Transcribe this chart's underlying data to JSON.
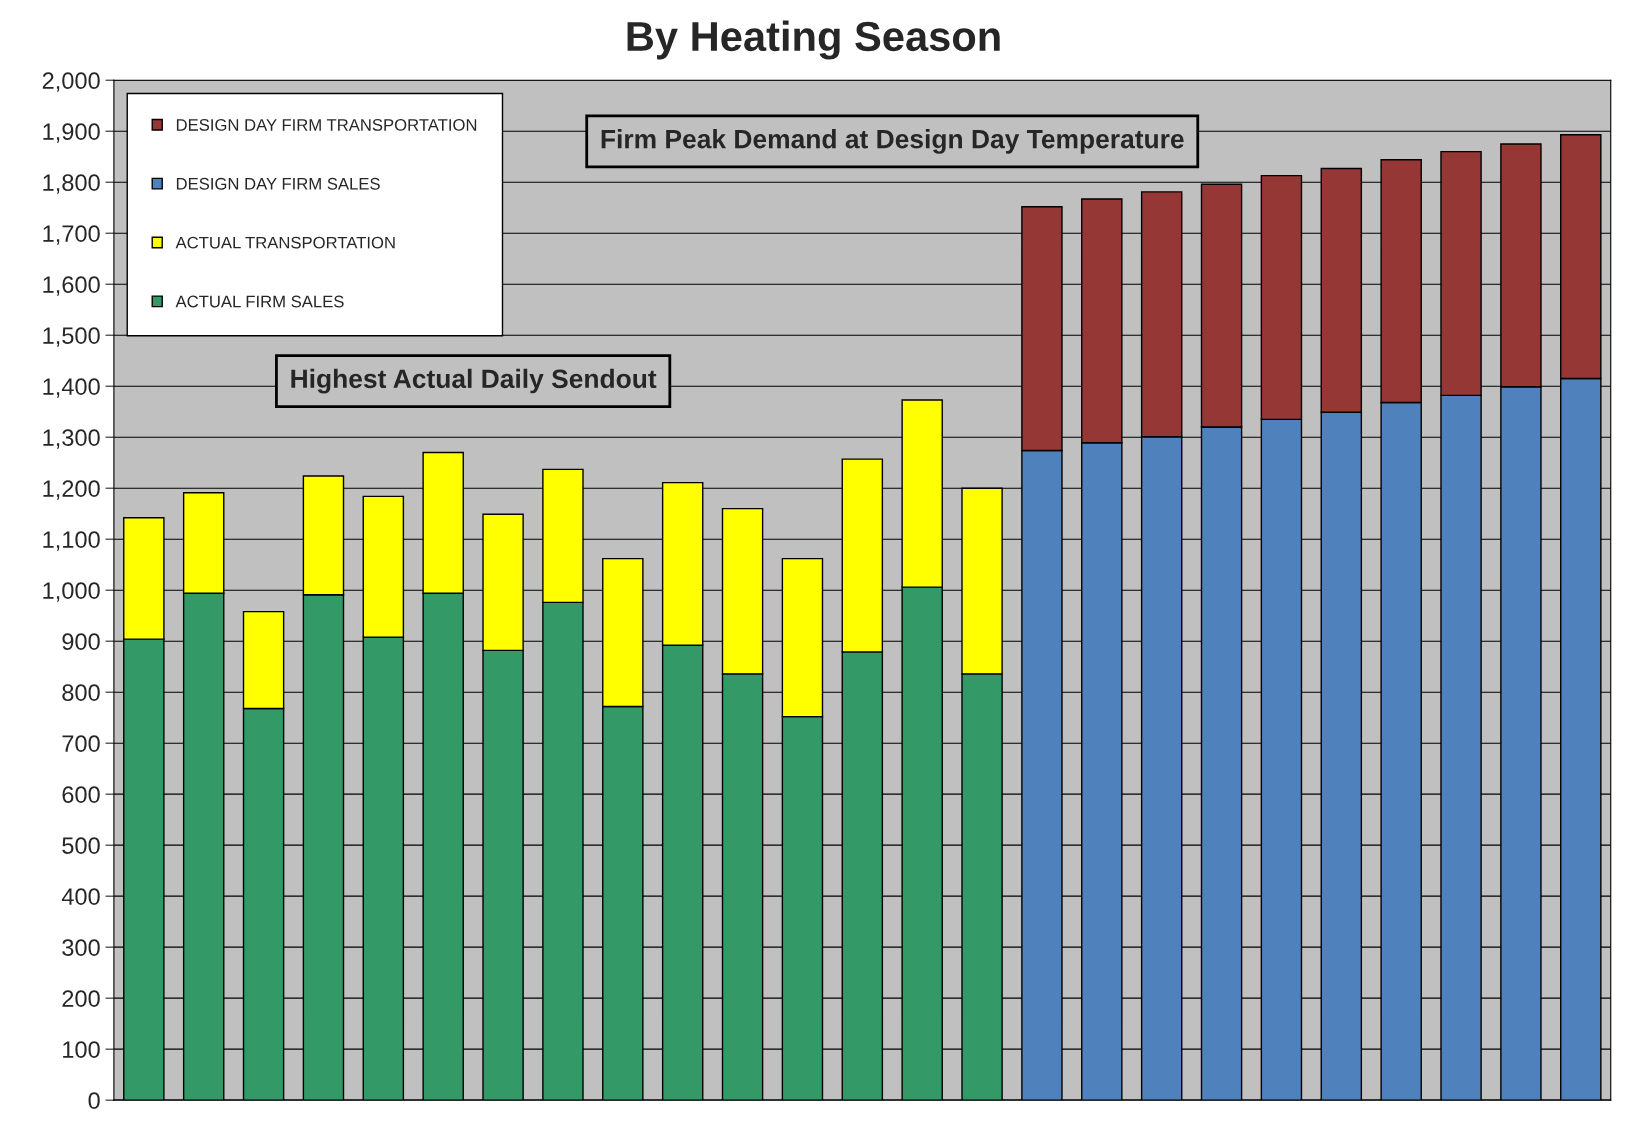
{
  "chart_data": {
    "type": "bar",
    "title": "By Heating Season",
    "stacked": true,
    "categories": [
      null,
      null,
      null,
      null,
      null,
      null,
      null,
      null,
      null,
      null,
      null,
      null,
      null,
      null,
      null,
      null,
      null,
      null,
      null,
      null,
      null,
      null,
      null,
      null,
      null
    ],
    "series": [
      {
        "name": "ACTUAL FIRM SALES",
        "color": "#339966",
        "values": [
          904,
          994,
          768,
          991,
          908,
          994,
          882,
          976,
          772,
          892,
          836,
          752,
          879,
          1006,
          836,
          null,
          null,
          null,
          null,
          null,
          null,
          null,
          null,
          null,
          null
        ]
      },
      {
        "name": "ACTUAL TRANSPORTATION",
        "color": "#ffff00",
        "values": [
          238,
          197,
          190,
          233,
          276,
          276,
          267,
          261,
          290,
          319,
          324,
          310,
          378,
          367,
          364,
          null,
          null,
          null,
          null,
          null,
          null,
          null,
          null,
          null,
          null
        ]
      },
      {
        "name": "DESIGN DAY FIRM SALES",
        "color": "#4f81bd",
        "values": [
          null,
          null,
          null,
          null,
          null,
          null,
          null,
          null,
          null,
          null,
          null,
          null,
          null,
          null,
          null,
          1274,
          1289,
          1301,
          1320,
          1335,
          1349,
          1368,
          1382,
          1399,
          1415
        ]
      },
      {
        "name": "DESIGN DAY FIRM TRANSPORTATION",
        "color": "#953735",
        "values": [
          null,
          null,
          null,
          null,
          null,
          null,
          null,
          null,
          null,
          null,
          null,
          null,
          null,
          null,
          null,
          478,
          478,
          480,
          476,
          478,
          478,
          476,
          478,
          476,
          478
        ]
      }
    ],
    "ylim": [
      0,
      2000
    ],
    "yticks": [
      0,
      {
        "value": 100,
        "label": "100"
      },
      200,
      300,
      400,
      500,
      600,
      700,
      800,
      900,
      {
        "value": 1000,
        "label": "1,000"
      },
      {
        "value": 1100,
        "label": "1,100"
      },
      {
        "value": 1200,
        "label": "1,200"
      },
      {
        "value": 1300,
        "label": "1,300"
      },
      {
        "value": 1400,
        "label": "1,400"
      },
      {
        "value": 1500,
        "label": "1,500"
      },
      {
        "value": 1600,
        "label": "1,600"
      },
      {
        "value": 1700,
        "label": "1,700"
      },
      {
        "value": 1800,
        "label": "1,800"
      },
      {
        "value": 1900,
        "label": "1,900"
      },
      {
        "value": 2000,
        "label": "2,000"
      }
    ],
    "grid": "y",
    "legend": "top left",
    "annotations": [
      "Highest Actual Daily Sendout",
      "Firm Peak Demand at Design Day Temperature"
    ]
  }
}
